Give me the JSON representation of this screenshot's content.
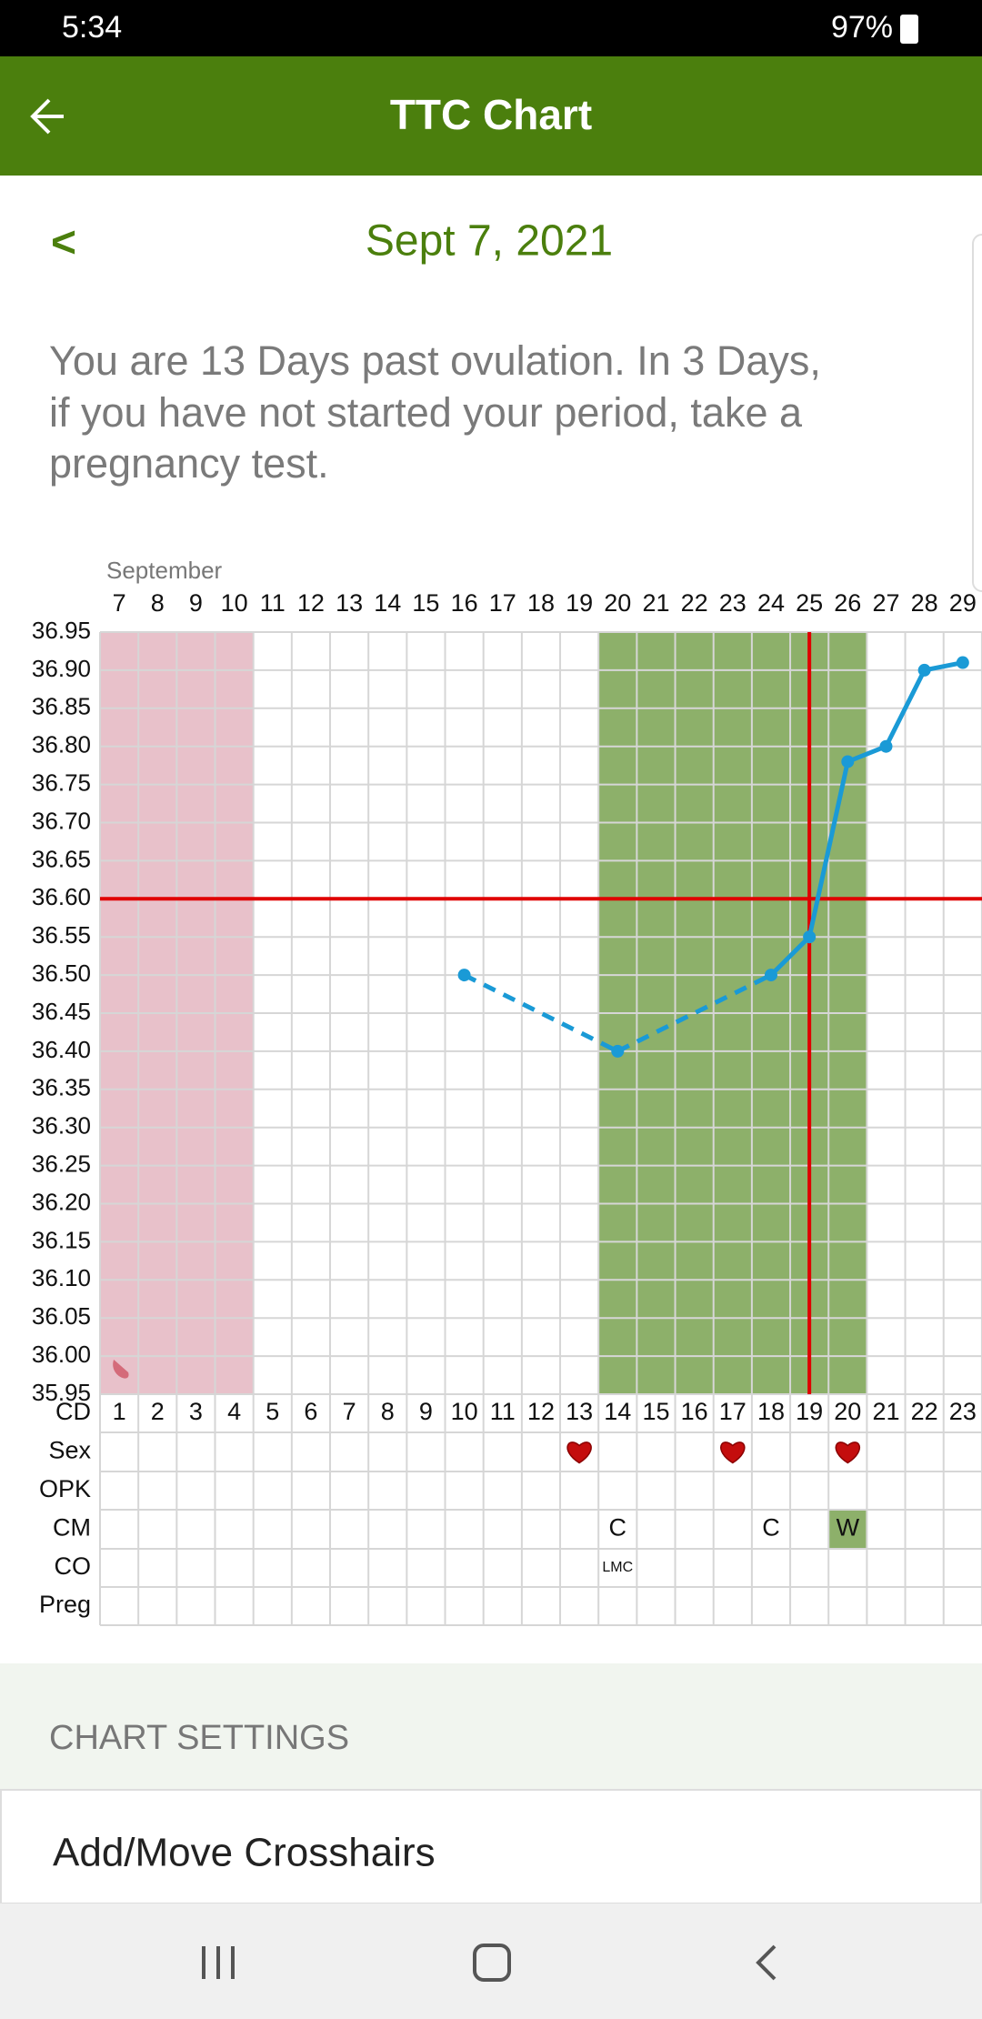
{
  "status_bar": {
    "time": "5:34",
    "battery": "97%"
  },
  "app_bar": {
    "title": "TTC Chart"
  },
  "date_nav": {
    "prev": "<",
    "date": "Sept 7, 2021"
  },
  "message": [
    "You are 13 Days past ovulation. In 3 Days,",
    "if you have not started your period, take a",
    "pregnancy test."
  ],
  "chart_data": {
    "type": "line",
    "month_label": "September",
    "categories": [
      "7",
      "8",
      "9",
      "10",
      "11",
      "12",
      "13",
      "14",
      "15",
      "16",
      "17",
      "18",
      "19",
      "20",
      "21",
      "22",
      "23",
      "24",
      "25",
      "26",
      "27",
      "28",
      "29"
    ],
    "cycle_days": [
      1,
      2,
      3,
      4,
      5,
      6,
      7,
      8,
      9,
      10,
      11,
      12,
      13,
      14,
      15,
      16,
      17,
      18,
      19,
      20,
      21,
      22,
      23
    ],
    "values": [
      null,
      null,
      null,
      null,
      null,
      null,
      null,
      null,
      null,
      36.5,
      null,
      null,
      null,
      36.4,
      null,
      null,
      null,
      36.5,
      36.55,
      36.78,
      36.8,
      36.9,
      36.91
    ],
    "color": "#1a9ad6",
    "ylim": [
      35.95,
      36.95
    ],
    "yticks": [
      35.95,
      {
        "value": 36.0,
        "label": "36.00"
      },
      36.05,
      {
        "value": 36.1,
        "label": "36.10"
      },
      36.15,
      {
        "value": 36.2,
        "label": "36.20"
      },
      36.25,
      {
        "value": 36.3,
        "label": "36.30"
      },
      36.35,
      {
        "value": 36.4,
        "label": "36.40"
      },
      36.45,
      {
        "value": 36.5,
        "label": "36.50"
      },
      36.55,
      {
        "value": 36.6,
        "label": "36.60"
      },
      36.65,
      {
        "value": 36.7,
        "label": "36.70"
      },
      36.75,
      {
        "value": 36.8,
        "label": "36.80"
      },
      36.85,
      {
        "value": 36.9,
        "label": "36.90"
      },
      36.95
    ],
    "grid": true,
    "period_days": [
      1,
      4
    ],
    "fertile_days": [
      14,
      20
    ],
    "crosshair": {
      "day": 19,
      "temp": 36.6
    },
    "row_labels": [
      "CD",
      "Sex",
      "OPK",
      "CM",
      "CO",
      "Preg"
    ],
    "sex_days": [
      13,
      17,
      20
    ],
    "cm": [
      {
        "day": 14,
        "label": "C"
      },
      {
        "day": 18,
        "label": "C"
      },
      {
        "day": 20,
        "label": "W"
      }
    ],
    "co": [
      {
        "day": 14,
        "label": "LMC"
      }
    ]
  },
  "settings": {
    "heading": "CHART SETTINGS",
    "item": "Add/Move Crosshairs"
  }
}
